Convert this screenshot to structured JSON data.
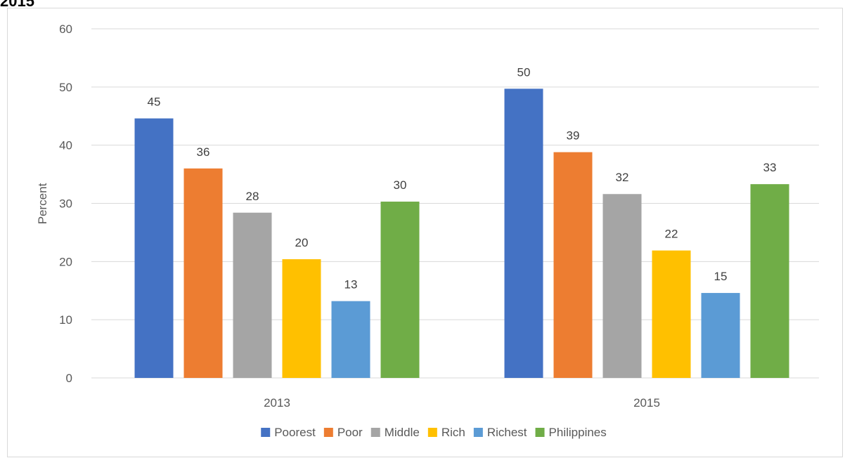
{
  "header": {
    "clipped_title": "2015"
  },
  "colors": {
    "gridline": "#d9d9d9",
    "axis_text": "#595959",
    "data_label": "#404040",
    "frame_border": "#d9d9d9"
  },
  "chart_data": {
    "type": "bar",
    "title": "",
    "xlabel": "",
    "ylabel": "Percent",
    "ylim": [
      0,
      60
    ],
    "yticks": [
      0,
      10,
      20,
      30,
      40,
      50,
      60
    ],
    "grid": true,
    "legend_position": "bottom",
    "categories": [
      "2013",
      "2015"
    ],
    "series": [
      {
        "name": "Poorest",
        "color": "#4472c4",
        "values": [
          44.6,
          49.7
        ],
        "labels": [
          "45",
          "50"
        ]
      },
      {
        "name": "Poor",
        "color": "#ed7d31",
        "values": [
          36.0,
          38.8
        ],
        "labels": [
          "36",
          "39"
        ]
      },
      {
        "name": "Middle",
        "color": "#a5a5a5",
        "values": [
          28.4,
          31.6
        ],
        "labels": [
          "28",
          "32"
        ]
      },
      {
        "name": "Rich",
        "color": "#ffc000",
        "values": [
          20.4,
          21.9
        ],
        "labels": [
          "20",
          "22"
        ]
      },
      {
        "name": "Richest",
        "color": "#5b9bd5",
        "values": [
          13.2,
          14.6
        ],
        "labels": [
          "13",
          "15"
        ]
      },
      {
        "name": "Philippines",
        "color": "#70ad47",
        "values": [
          30.3,
          33.3
        ],
        "labels": [
          "30",
          "33"
        ]
      }
    ]
  }
}
